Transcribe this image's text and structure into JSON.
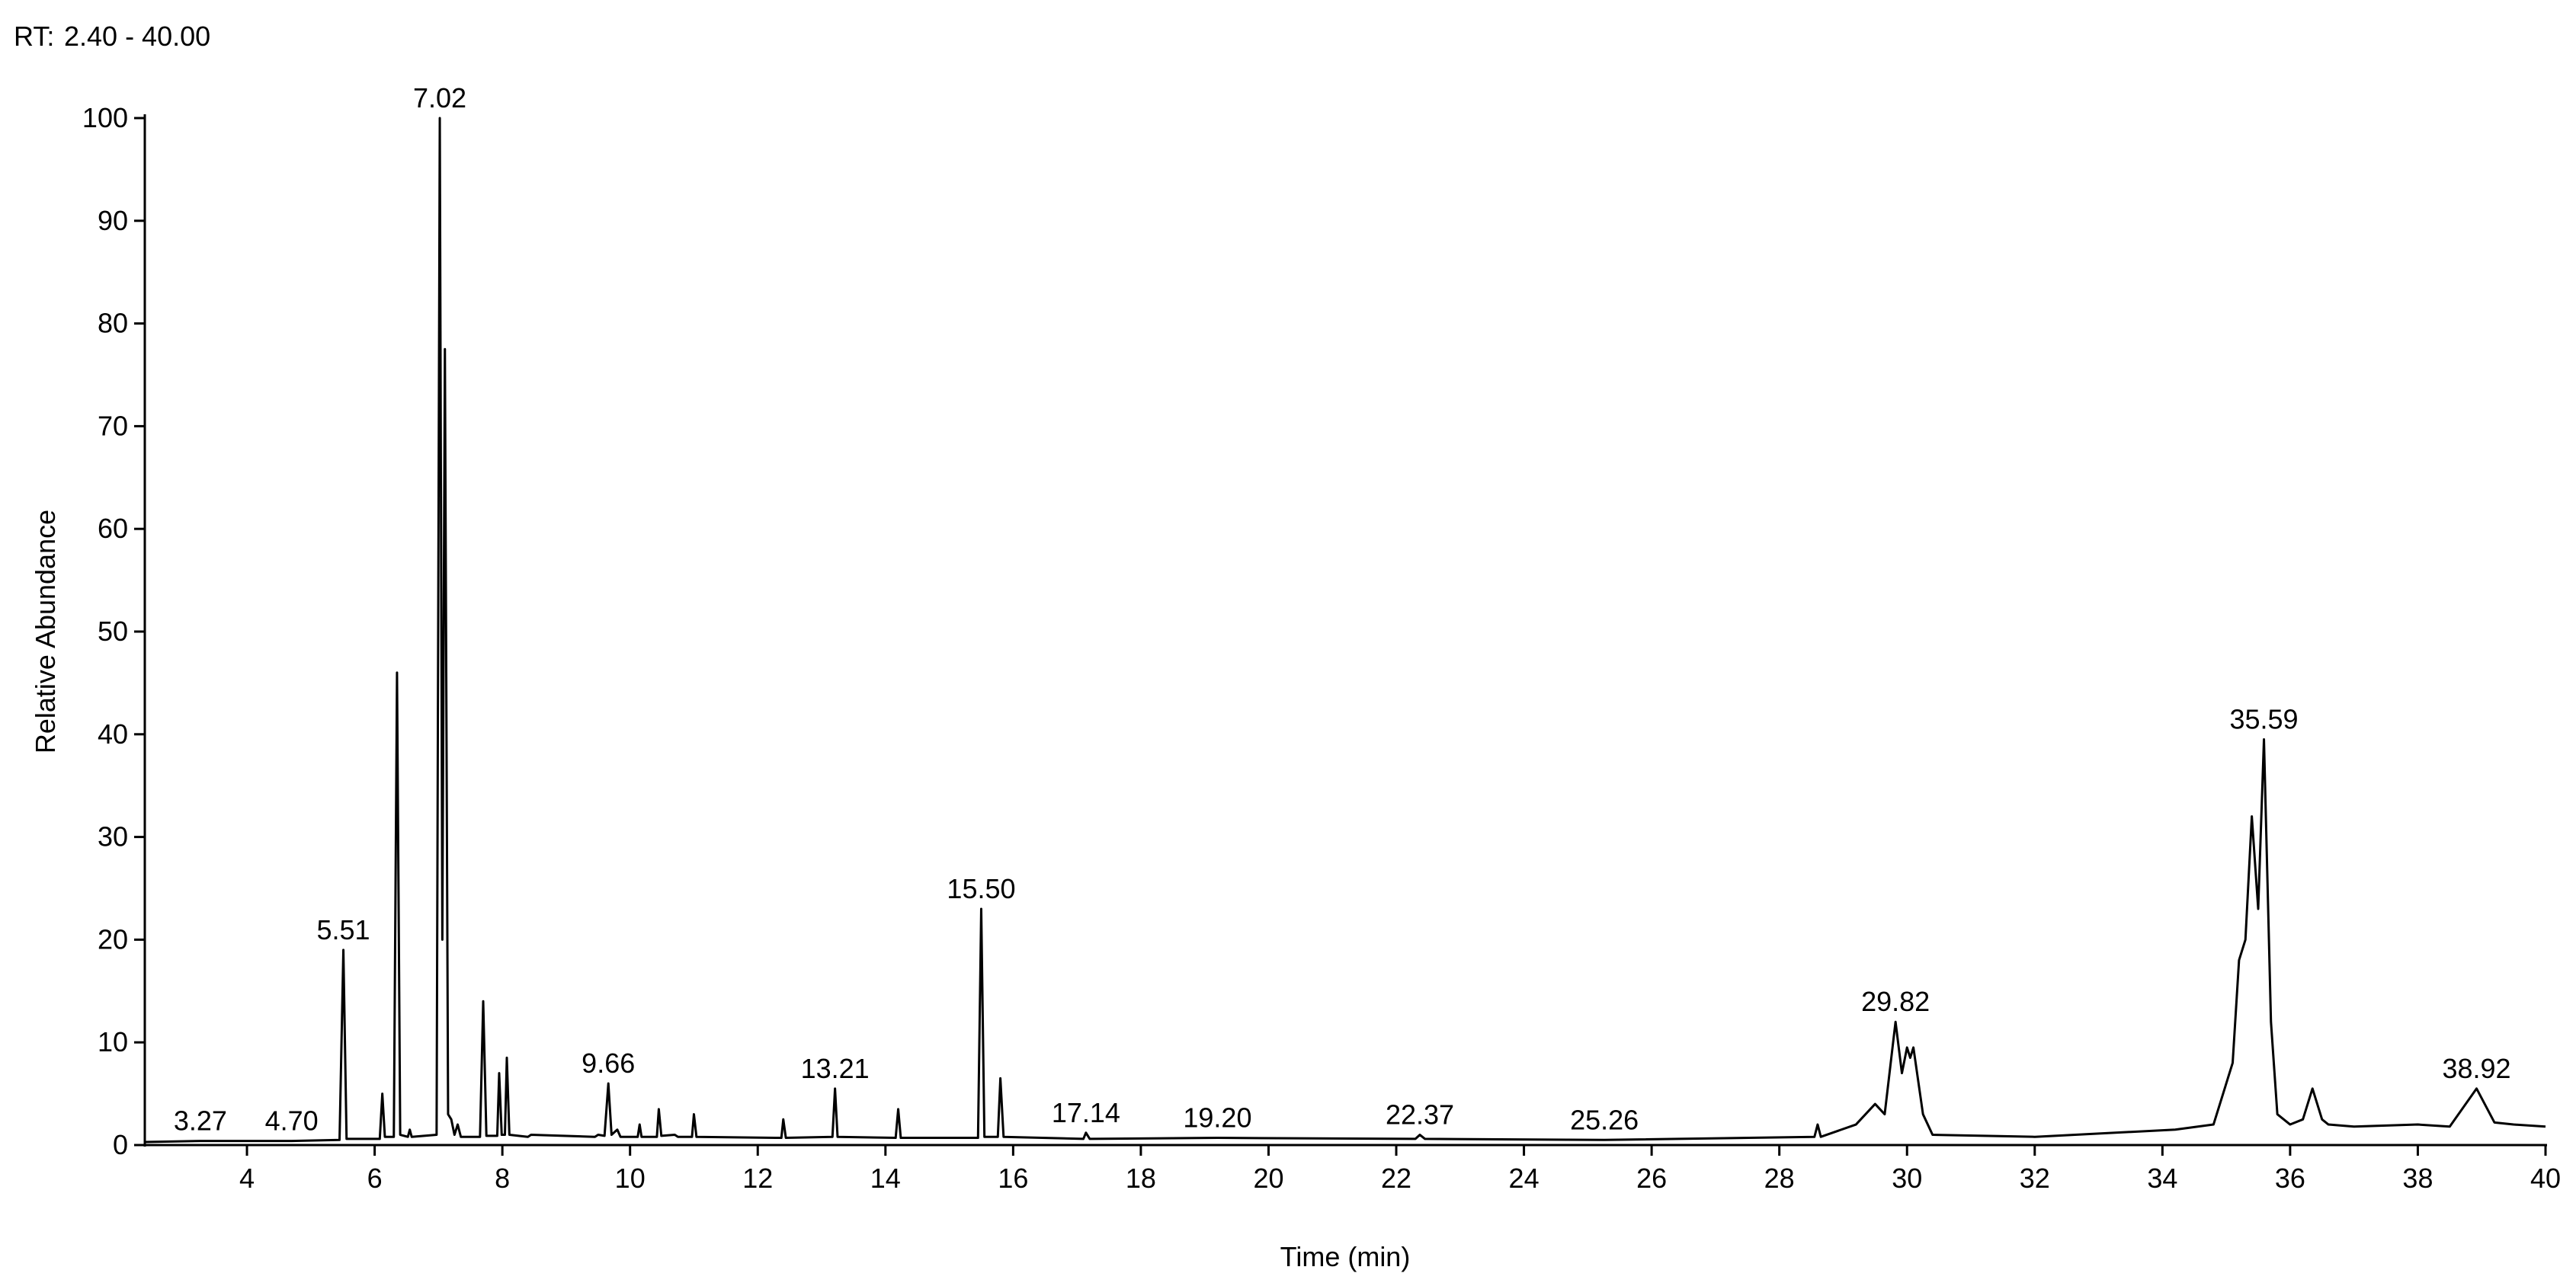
{
  "chart_data": {
    "type": "line",
    "rt_label": "RT:",
    "rt_range": "2.40 - 40.00",
    "rt_range_color": "#1a1a9c",
    "x_label": "Time (min)",
    "y_label": "Relative Abundance",
    "color": "#000000",
    "xlim": [
      2.4,
      40
    ],
    "ylim": [
      0,
      100
    ],
    "xticks": [
      4,
      6,
      8,
      10,
      12,
      14,
      16,
      18,
      20,
      22,
      24,
      26,
      28,
      30,
      32,
      34,
      36,
      38,
      40
    ],
    "yticks": [
      0,
      10,
      20,
      30,
      40,
      50,
      60,
      70,
      80,
      90,
      100
    ],
    "x": [
      2.4,
      3.27,
      4.7,
      5.45,
      5.51,
      5.56,
      6.08,
      6.12,
      6.16,
      6.3,
      6.35,
      6.4,
      6.52,
      6.55,
      6.58,
      6.97,
      7.02,
      7.06,
      7.1,
      7.15,
      7.2,
      7.25,
      7.3,
      7.35,
      7.65,
      7.7,
      7.75,
      7.92,
      7.95,
      7.99,
      8.04,
      8.07,
      8.11,
      8.4,
      8.45,
      9.45,
      9.5,
      9.6,
      9.66,
      9.71,
      9.8,
      9.85,
      10.12,
      10.15,
      10.18,
      10.42,
      10.45,
      10.49,
      10.7,
      10.75,
      10.97,
      11.0,
      11.04,
      12.37,
      12.4,
      12.44,
      13.17,
      13.21,
      13.25,
      14.16,
      14.2,
      14.24,
      15.45,
      15.5,
      15.55,
      15.76,
      15.8,
      15.85,
      17.1,
      17.14,
      17.2,
      19.2,
      22.3,
      22.37,
      22.45,
      25.26,
      28.55,
      28.6,
      28.65,
      29.2,
      29.5,
      29.65,
      29.82,
      29.92,
      30.0,
      30.05,
      30.1,
      30.25,
      30.4,
      32.0,
      34.2,
      34.8,
      35.1,
      35.2,
      35.3,
      35.4,
      35.5,
      35.59,
      35.7,
      35.8,
      36.0,
      36.2,
      36.35,
      36.5,
      36.6,
      37.0,
      38.0,
      38.5,
      38.92,
      39.2,
      39.5,
      40.0
    ],
    "values": [
      0.3,
      0.4,
      0.4,
      0.5,
      19,
      0.6,
      0.6,
      5,
      0.8,
      0.8,
      46,
      1,
      0.8,
      1.5,
      0.8,
      1,
      100,
      20,
      77.5,
      3,
      2.5,
      1,
      2,
      0.8,
      0.8,
      14,
      0.9,
      0.9,
      7,
      1,
      1,
      8.5,
      1,
      0.8,
      1,
      0.8,
      1,
      0.9,
      6,
      1,
      1.5,
      0.8,
      0.8,
      2,
      0.8,
      0.8,
      3.5,
      0.9,
      1,
      0.8,
      0.8,
      3,
      0.8,
      0.7,
      2.5,
      0.7,
      0.8,
      5.5,
      0.8,
      0.7,
      3.5,
      0.7,
      0.7,
      23,
      0.8,
      0.8,
      6.5,
      0.8,
      0.6,
      1.2,
      0.6,
      0.7,
      0.6,
      1,
      0.6,
      0.5,
      0.8,
      2,
      0.8,
      2,
      4,
      3,
      12,
      7,
      9.5,
      8.5,
      9.5,
      3,
      1,
      0.8,
      1.5,
      2,
      8,
      18,
      20,
      32,
      23,
      39.5,
      12,
      3,
      2,
      2.5,
      5.5,
      2.5,
      2,
      1.8,
      2,
      1.8,
      5.5,
      2.2,
      2,
      1.8
    ],
    "peaks": {
      "x": [
        3.27,
        4.7,
        5.51,
        7.02,
        9.66,
        13.21,
        15.5,
        17.14,
        19.2,
        22.37,
        25.26,
        29.82,
        35.59,
        38.92
      ],
      "labels": [
        "3.27",
        "4.70",
        "5.51",
        "7.02",
        "9.66",
        "13.21",
        "15.50",
        "17.14",
        "19.20",
        "22.37",
        "25.26",
        "29.82",
        "35.59",
        "38.92"
      ]
    }
  }
}
